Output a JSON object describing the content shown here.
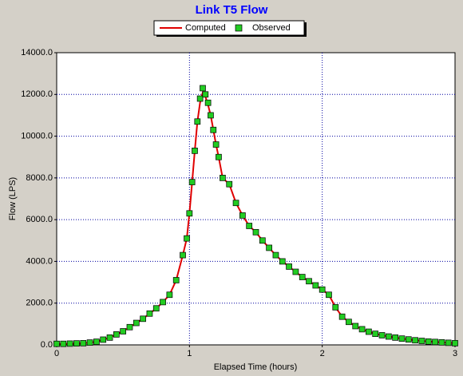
{
  "chart_data": {
    "type": "line",
    "title": "Link T5 Flow",
    "x_label": "Elapsed Time (hours)",
    "y_label": "Flow (LPS)",
    "x": [
      0,
      0.05,
      0.1,
      0.15,
      0.2,
      0.25,
      0.3,
      0.35,
      0.4,
      0.45,
      0.5,
      0.55,
      0.6,
      0.65,
      0.7,
      0.75,
      0.8,
      0.85,
      0.9,
      0.95,
      0.98,
      1.0,
      1.02,
      1.04,
      1.06,
      1.08,
      1.1,
      1.12,
      1.14,
      1.16,
      1.18,
      1.2,
      1.22,
      1.25,
      1.3,
      1.35,
      1.4,
      1.45,
      1.5,
      1.55,
      1.6,
      1.65,
      1.7,
      1.75,
      1.8,
      1.85,
      1.9,
      1.95,
      2.0,
      2.05,
      2.1,
      2.15,
      2.2,
      2.25,
      2.3,
      2.35,
      2.4,
      2.45,
      2.5,
      2.55,
      2.6,
      2.65,
      2.7,
      2.75,
      2.8,
      2.85,
      2.9,
      2.95,
      3.0
    ],
    "series": [
      {
        "name": "Computed",
        "color": "#e00000",
        "marker": "line",
        "values": [
          50,
          50,
          60,
          70,
          80,
          110,
          150,
          250,
          350,
          500,
          650,
          850,
          1050,
          1250,
          1500,
          1750,
          2050,
          2400,
          3100,
          4300,
          5100,
          6300,
          7800,
          9300,
          10700,
          11600,
          12100,
          11900,
          11500,
          11000,
          10300,
          9600,
          9000,
          8000,
          7700,
          6800,
          6200,
          5700,
          5400,
          5000,
          4650,
          4300,
          4000,
          3750,
          3500,
          3250,
          3050,
          2850,
          2650,
          2400,
          1800,
          1350,
          1100,
          900,
          750,
          630,
          530,
          460,
          400,
          350,
          300,
          260,
          220,
          190,
          160,
          140,
          120,
          100,
          80
        ]
      },
      {
        "name": "Observed",
        "color": "#22cc22",
        "marker": "square",
        "values": [
          50,
          50,
          60,
          70,
          80,
          110,
          150,
          250,
          350,
          500,
          650,
          850,
          1050,
          1250,
          1500,
          1750,
          2050,
          2400,
          3100,
          4300,
          5100,
          6300,
          7800,
          9300,
          10700,
          11800,
          12300,
          12000,
          11600,
          11000,
          10300,
          9600,
          9000,
          8000,
          7700,
          6800,
          6200,
          5700,
          5400,
          5000,
          4650,
          4300,
          4000,
          3750,
          3500,
          3250,
          3050,
          2850,
          2650,
          2400,
          1800,
          1350,
          1100,
          900,
          750,
          630,
          530,
          460,
          400,
          350,
          300,
          260,
          220,
          190,
          160,
          140,
          120,
          100,
          80
        ]
      }
    ],
    "xlim": [
      0,
      3
    ],
    "xticks": [
      0,
      1,
      2,
      3
    ],
    "ylim": [
      0,
      14000
    ],
    "yticks": [
      {
        "value": 0,
        "label": "0.0"
      },
      {
        "value": 2000,
        "label": "2000.0"
      },
      {
        "value": 4000,
        "label": "4000.0"
      },
      {
        "value": 6000,
        "label": "6000.0"
      },
      {
        "value": 8000,
        "label": "8000.0"
      },
      {
        "value": 10000,
        "label": "10000.0"
      },
      {
        "value": 12000,
        "label": "12000.0"
      },
      {
        "value": 14000,
        "label": "14000.0"
      }
    ],
    "grid": true,
    "legend": "top"
  }
}
